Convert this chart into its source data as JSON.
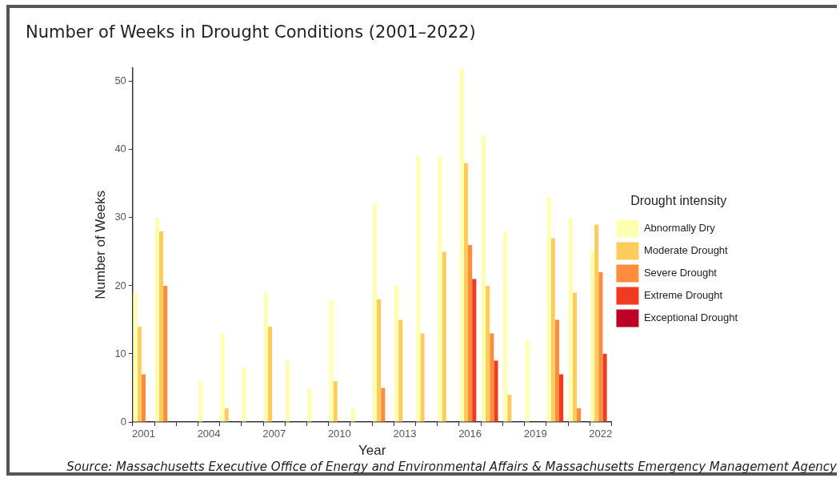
{
  "chart_data": {
    "type": "bar",
    "title": "Number of Weeks in Drought Conditions (2001–2022)",
    "xlabel": "Year",
    "ylabel": "Number of Weeks",
    "legend_title": "Drought intensity",
    "categories": [
      "2001",
      null,
      null,
      "2004",
      null,
      null,
      "2007",
      null,
      null,
      "2010",
      null,
      null,
      "2013",
      null,
      null,
      "2016",
      null,
      null,
      "2019",
      null,
      null,
      "2022"
    ],
    "series": [
      {
        "name": "Abnormally Dry",
        "color": "#ffffb2",
        "values": [
          19,
          30,
          0,
          6,
          13,
          8,
          19,
          9,
          5,
          18,
          2,
          32,
          20,
          39,
          39,
          52,
          42,
          28,
          12,
          33,
          30,
          25
        ]
      },
      {
        "name": "Moderate Drought",
        "color": "#fecc5c",
        "values": [
          14,
          28,
          0,
          0,
          2,
          0,
          14,
          0,
          0,
          6,
          0,
          18,
          15,
          13,
          25,
          38,
          20,
          4,
          0,
          27,
          19,
          29
        ]
      },
      {
        "name": "Severe Drought",
        "color": "#fd8d3c",
        "values": [
          7,
          20,
          0,
          0,
          0,
          0,
          0,
          0,
          0,
          0,
          0,
          5,
          0,
          0,
          0,
          26,
          13,
          0,
          0,
          15,
          2,
          22
        ]
      },
      {
        "name": "Extreme Drought",
        "color": "#f03b20",
        "values": [
          0,
          0,
          0,
          0,
          0,
          0,
          0,
          0,
          0,
          0,
          0,
          0,
          0,
          0,
          0,
          21,
          9,
          0,
          0,
          7,
          0,
          10
        ]
      },
      {
        "name": "Exceptional Drought",
        "color": "#bd0026",
        "values": [
          0,
          0,
          0,
          0,
          0,
          0,
          0,
          0,
          0,
          0,
          0,
          0,
          0,
          0,
          0,
          0,
          0,
          0,
          0,
          0,
          0,
          0
        ]
      }
    ],
    "ylim": [
      0,
      52
    ],
    "yticks": [
      0,
      10,
      20,
      30,
      40,
      50
    ],
    "grid": false,
    "legend": "right",
    "annotations": [
      "Source: Massachusetts Executive Office of Energy and Environmental Affairs & Massachusetts Emergency Management Agency"
    ]
  }
}
